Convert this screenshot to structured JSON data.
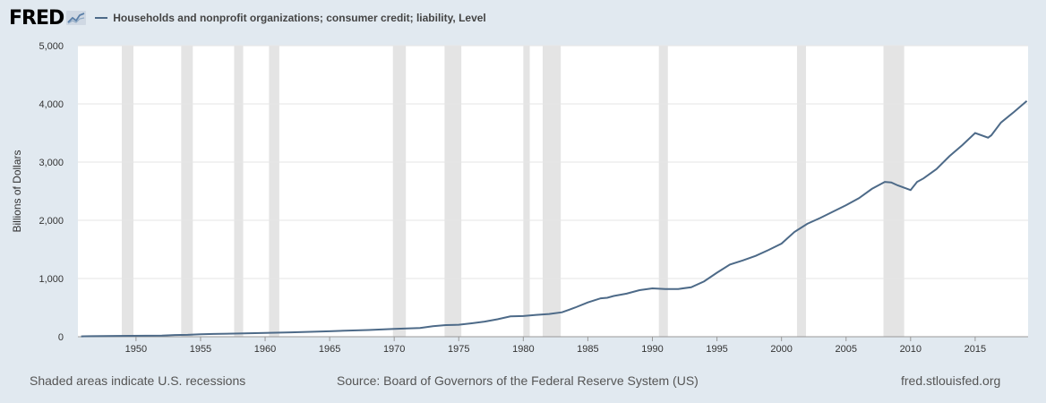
{
  "logo": {
    "text": "FRED"
  },
  "chart_data": {
    "type": "line",
    "title": "Households and nonprofit organizations; consumer credit; liability, Level",
    "ylabel": "Billions of Dollars",
    "xlabel": "",
    "xlim": [
      1945.5,
      2019.1
    ],
    "ylim": [
      0,
      5000
    ],
    "x_ticks": [
      1950,
      1955,
      1960,
      1965,
      1970,
      1975,
      1980,
      1985,
      1990,
      1995,
      2000,
      2005,
      2010,
      2015
    ],
    "y_ticks": [
      0,
      1000,
      2000,
      3000,
      4000,
      5000
    ],
    "y_tick_labels": [
      "0",
      "1,000",
      "2,000",
      "3,000",
      "4,000",
      "5,000"
    ],
    "grid": "horizontal",
    "line_color": "#4d6a88",
    "recession_color": "#e4e4e4",
    "recessions": [
      [
        1948.9,
        1949.8
      ],
      [
        1953.5,
        1954.4
      ],
      [
        1957.6,
        1958.3
      ],
      [
        1960.3,
        1961.1
      ],
      [
        1969.9,
        1970.9
      ],
      [
        1973.9,
        1975.2
      ],
      [
        1980.0,
        1980.5
      ],
      [
        1981.5,
        1982.9
      ],
      [
        1990.5,
        1991.2
      ],
      [
        2001.2,
        2001.9
      ],
      [
        2007.9,
        2009.5
      ]
    ],
    "series": [
      {
        "name": "Households and nonprofit organizations; consumer credit; liability, Level",
        "x": [
          1945.75,
          1946.0,
          1946.5,
          1952.0,
          1953.0,
          1954.0,
          1955.0,
          1956.0,
          1958.0,
          1960.0,
          1962.0,
          1965.0,
          1968.0,
          1970.0,
          1972.0,
          1973.0,
          1974.0,
          1975.0,
          1976.0,
          1977.0,
          1978.0,
          1979.0,
          1980.0,
          1981.0,
          1982.0,
          1983.0,
          1984.0,
          1985.0,
          1986.0,
          1986.5,
          1987.0,
          1988.0,
          1989.0,
          1990.0,
          1991.0,
          1992.0,
          1993.0,
          1994.0,
          1995.0,
          1996.0,
          1997.0,
          1998.0,
          1999.0,
          2000.0,
          2001.0,
          2002.0,
          2003.0,
          2004.0,
          2005.0,
          2006.0,
          2007.0,
          2008.0,
          2008.5,
          2009.0,
          2010.0,
          2010.5,
          2011.0,
          2012.0,
          2013.0,
          2014.0,
          2015.0,
          2016.0,
          2016.25,
          2017.0,
          2018.0,
          2019.0
        ],
        "values": [
          5,
          8,
          10,
          20,
          28,
          32,
          42,
          48,
          55,
          65,
          75,
          95,
          115,
          135,
          150,
          180,
          200,
          205,
          230,
          260,
          300,
          350,
          355,
          375,
          390,
          420,
          500,
          590,
          660,
          670,
          700,
          740,
          800,
          830,
          820,
          820,
          850,
          950,
          1100,
          1240,
          1310,
          1390,
          1490,
          1600,
          1800,
          1940,
          2040,
          2150,
          2260,
          2380,
          2540,
          2660,
          2650,
          2600,
          2520,
          2660,
          2720,
          2880,
          3100,
          3290,
          3500,
          3420,
          3460,
          3680,
          3860,
          4050
        ]
      }
    ]
  },
  "footer": {
    "left": "Shaded areas indicate U.S. recessions",
    "source": "Source: Board of Governors of the Federal Reserve System (US)",
    "url": "fred.stlouisfed.org"
  }
}
